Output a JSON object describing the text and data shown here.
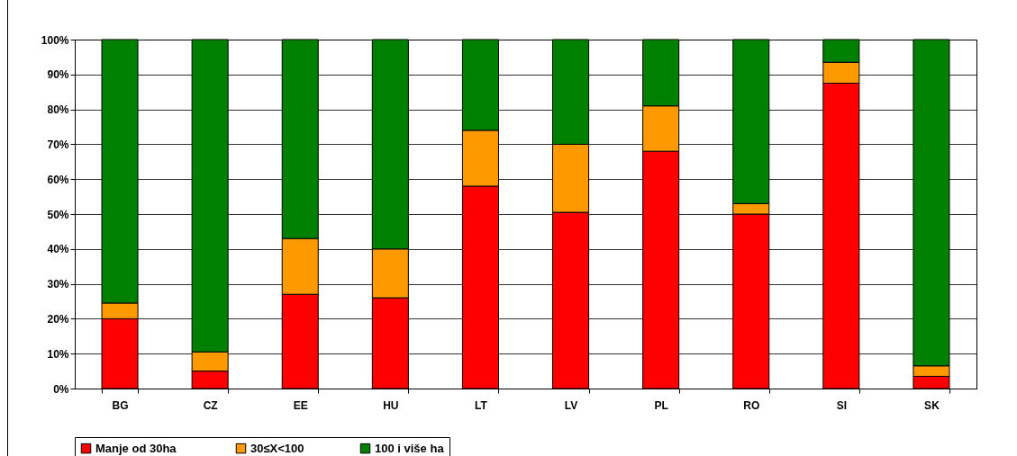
{
  "chart_data": {
    "type": "bar",
    "stacked": true,
    "categories": [
      "BG",
      "CZ",
      "EE",
      "HU",
      "LT",
      "LV",
      "PL",
      "RO",
      "SI",
      "SK"
    ],
    "series": [
      {
        "name": "Manje od  30ha",
        "color": "#ff0000",
        "values": [
          20,
          5,
          27,
          26,
          58,
          50.5,
          68,
          50,
          87.5,
          3.5
        ]
      },
      {
        "name": "30≤X<100",
        "color": "#ff9900",
        "values": [
          4.5,
          5.5,
          16,
          14,
          16,
          19.5,
          13,
          3,
          6,
          3
        ]
      },
      {
        "name": "100 i više ha",
        "color": "#008000",
        "values": [
          75.5,
          89.5,
          57,
          60,
          26,
          30,
          19,
          47,
          6.5,
          93.5
        ]
      }
    ],
    "ylim": [
      0,
      100
    ],
    "yticks": [
      {
        "value": 0,
        "label": "0%"
      },
      {
        "value": 10,
        "label": "10%"
      },
      {
        "value": 20,
        "label": "20%"
      },
      {
        "value": 30,
        "label": "30%"
      },
      {
        "value": 40,
        "label": "40%"
      },
      {
        "value": 50,
        "label": "50%"
      },
      {
        "value": 60,
        "label": "60%"
      },
      {
        "value": 70,
        "label": "70%"
      },
      {
        "value": 80,
        "label": "80%"
      },
      {
        "value": 90,
        "label": "90%"
      },
      {
        "value": 100,
        "label": "100%"
      }
    ],
    "grid": "y",
    "legend": "bottom"
  }
}
